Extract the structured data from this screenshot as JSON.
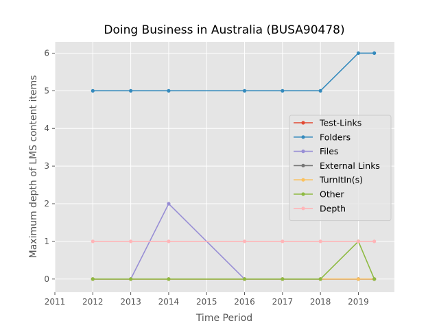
{
  "chart_data": {
    "type": "line",
    "title": "Doing Business in Australia (BUSA90478)",
    "xlabel": "Time Period",
    "ylabel": "Maximum depth of LMS content items",
    "xlim": [
      2011,
      2019.95
    ],
    "ylim": [
      -0.35,
      6.3
    ],
    "xticks": [
      2011,
      2012,
      2013,
      2014,
      2015,
      2016,
      2017,
      2018,
      2019
    ],
    "yticks": [
      0,
      1,
      2,
      3,
      4,
      5,
      6
    ],
    "x": [
      2012,
      2013,
      2014,
      2016,
      2017,
      2018,
      2019,
      2019.42
    ],
    "grid": true,
    "legend_position": "center-right",
    "colors": {
      "background": "#e5e5e5",
      "grid": "#ffffff"
    },
    "series": [
      {
        "name": "Test-Links",
        "color": "#e24a33",
        "values": [
          0,
          0,
          0,
          0,
          0,
          0,
          0,
          0
        ]
      },
      {
        "name": "Folders",
        "color": "#348abd",
        "values": [
          5,
          5,
          5,
          5,
          5,
          5,
          6,
          6
        ]
      },
      {
        "name": "Files",
        "color": "#988ed5",
        "values": [
          0,
          0,
          2,
          0,
          0,
          0,
          0,
          0
        ]
      },
      {
        "name": "External Links",
        "color": "#777777",
        "values": [
          0,
          0,
          0,
          0,
          0,
          0,
          0,
          0
        ]
      },
      {
        "name": "TurnItIn(s)",
        "color": "#fbc15e",
        "values": [
          0,
          0,
          0,
          0,
          0,
          0,
          0,
          0
        ]
      },
      {
        "name": "Other",
        "color": "#8eba42",
        "values": [
          0,
          0,
          0,
          0,
          0,
          0,
          1,
          0
        ]
      },
      {
        "name": "Depth",
        "color": "#ffb5b8",
        "values": [
          1,
          1,
          1,
          1,
          1,
          1,
          1,
          1
        ]
      }
    ]
  }
}
